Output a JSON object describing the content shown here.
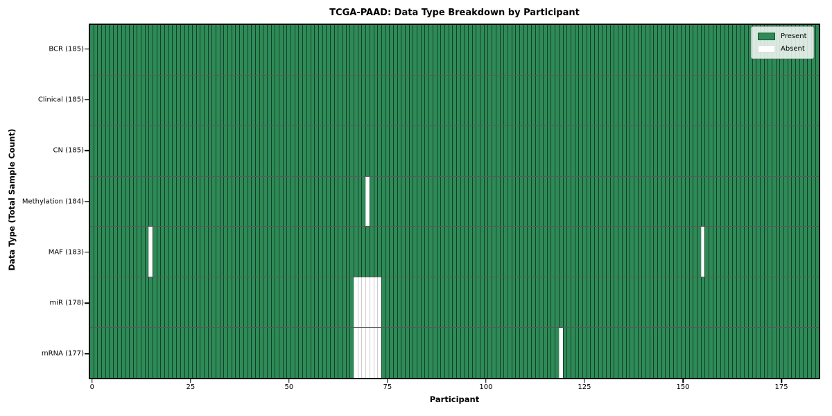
{
  "chart_data": {
    "type": "heatmap",
    "title": "TCGA-PAAD: Data Type Breakdown by Participant",
    "xlabel": "Participant",
    "ylabel": "Data Type (Total Sample Count)",
    "n_participants": 185,
    "x_ticks": [
      0,
      25,
      50,
      75,
      100,
      125,
      150,
      175
    ],
    "xlim": [
      0,
      185
    ],
    "grid": false,
    "legend_position": "upper-right",
    "rows": [
      {
        "label": "BCR (185)",
        "data_type": "BCR",
        "total_present": 185,
        "absent_participants": []
      },
      {
        "label": "Clinical (185)",
        "data_type": "Clinical",
        "total_present": 185,
        "absent_participants": []
      },
      {
        "label": "CN (185)",
        "data_type": "CN",
        "total_present": 185,
        "absent_participants": []
      },
      {
        "label": "Methylation (184)",
        "data_type": "Methylation",
        "total_present": 184,
        "absent_participants": [
          70
        ]
      },
      {
        "label": "MAF (183)",
        "data_type": "MAF",
        "total_present": 183,
        "absent_participants": [
          15,
          155
        ]
      },
      {
        "label": "miR (178)",
        "data_type": "miR",
        "total_present": 178,
        "absent_participants": [
          67,
          68,
          69,
          70,
          71,
          72,
          73
        ]
      },
      {
        "label": "mRNA (177)",
        "data_type": "mRNA",
        "total_present": 177,
        "absent_participants": [
          67,
          68,
          69,
          70,
          71,
          72,
          73,
          119
        ]
      }
    ],
    "legend": {
      "entries": [
        {
          "label": "Present",
          "color": "#2e8b57",
          "edge": "rgba(0,0,0,0.45)"
        },
        {
          "label": "Absent",
          "color": "#ffffff",
          "edge": "#dedede"
        }
      ]
    },
    "colors": {
      "present": "#2e8b57",
      "absent": "#ffffff",
      "present_edge": "rgba(0,0,0,0.55)",
      "absent_edge": "#cccccc",
      "spine": "#000000",
      "background": "#ffffff"
    }
  }
}
